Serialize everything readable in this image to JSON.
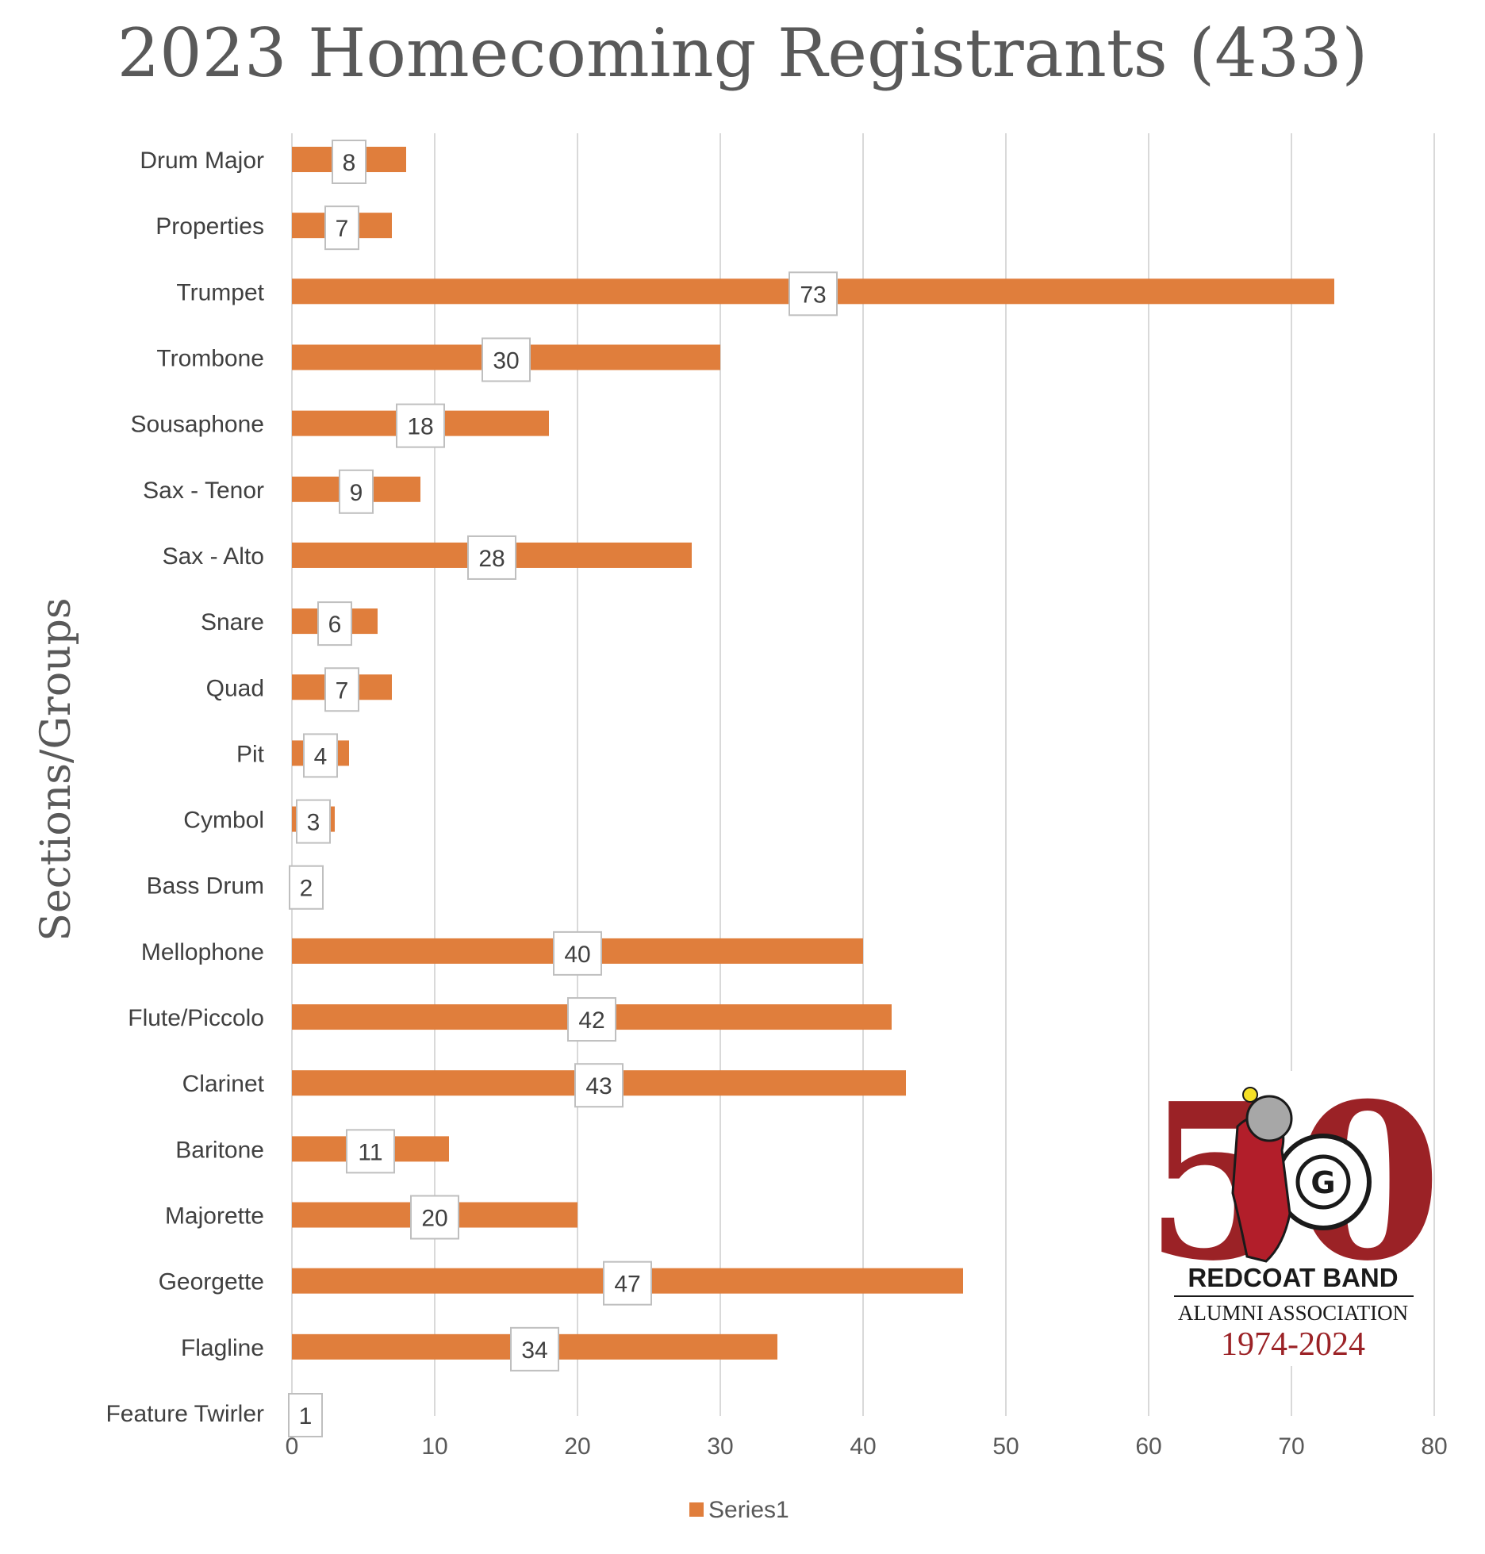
{
  "chart_data": {
    "type": "bar",
    "orientation": "horizontal",
    "title": "2023 Homecoming Registrants (433)",
    "ylabel": "Sections/Groups",
    "xlabel": "",
    "xlim": [
      0,
      80
    ],
    "x_ticks": [
      0,
      10,
      20,
      30,
      40,
      50,
      60,
      70,
      80
    ],
    "grid": "vertical",
    "legend_position": "bottom",
    "series": [
      {
        "name": "Series1",
        "color": "#e07e3c",
        "categories": [
          "Drum Major",
          "Properties",
          "Trumpet",
          "Trombone",
          "Sousaphone",
          "Sax - Tenor",
          "Sax - Alto",
          "Snare",
          "Quad",
          "Pit",
          "Cymbol",
          "Bass Drum",
          "Mellophone",
          "Flute/Piccolo",
          "Clarinet",
          "Baritone",
          "Majorette",
          "Georgette",
          "Flagline",
          "Feature Twirler"
        ],
        "values": [
          8,
          7,
          73,
          30,
          18,
          9,
          28,
          6,
          7,
          4,
          3,
          2,
          40,
          42,
          43,
          11,
          20,
          47,
          34,
          1
        ]
      }
    ]
  },
  "logo": {
    "big_number": "50",
    "line1": "REDCOAT BAND",
    "line2": "ALUMNI ASSOCIATION",
    "line3": "1974-2024",
    "drum_letter": "G"
  }
}
